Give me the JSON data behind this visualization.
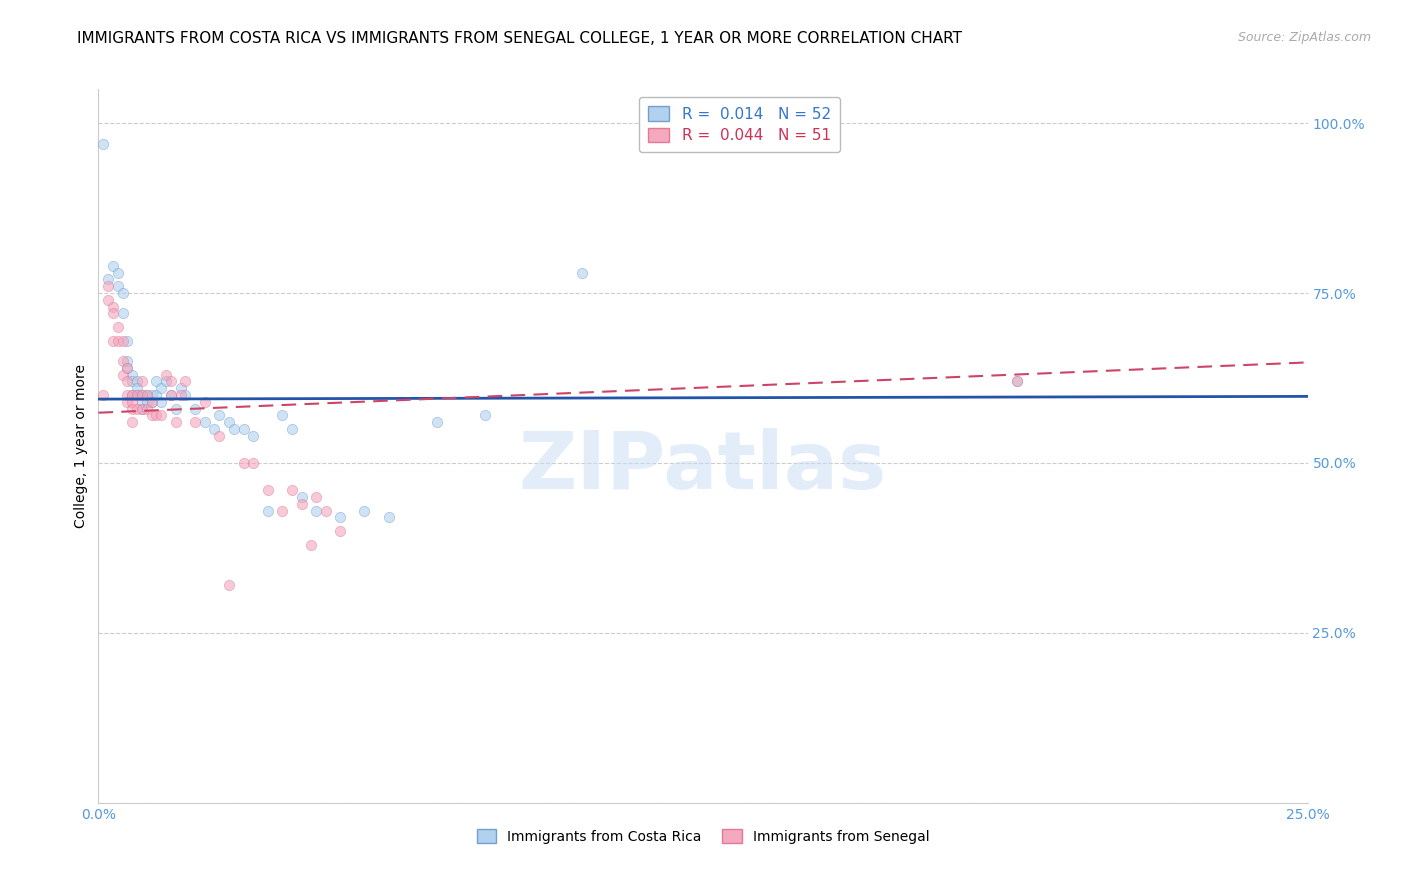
{
  "title": "IMMIGRANTS FROM COSTA RICA VS IMMIGRANTS FROM SENEGAL COLLEGE, 1 YEAR OR MORE CORRELATION CHART",
  "source": "Source: ZipAtlas.com",
  "ylabel": "College, 1 year or more",
  "xlim": [
    0.0,
    0.25
  ],
  "ylim": [
    0.0,
    1.05
  ],
  "x_ticks": [
    0.0,
    0.25
  ],
  "x_tick_labels": [
    "0.0%",
    "25.0%"
  ],
  "y_ticks": [
    0.0,
    0.25,
    0.5,
    0.75,
    1.0
  ],
  "y_tick_labels_right": [
    "",
    "25.0%",
    "50.0%",
    "75.0%",
    "100.0%"
  ],
  "background_color": "#ffffff",
  "watermark": "ZIPatlas",
  "grid_color": "#cccccc",
  "scatter_alpha": 0.55,
  "scatter_size": 55,
  "blue_color": "#aaccee",
  "blue_edge": "#6699cc",
  "pink_color": "#f4a0b8",
  "pink_edge": "#dd7090",
  "blue_line_color": "#2255aa",
  "pink_line_color": "#cc4466",
  "legend_label_blue": "R =  0.014   N = 52",
  "legend_label_pink": "R =  0.044   N = 51",
  "bottom_label_blue": "Immigrants from Costa Rica",
  "bottom_label_pink": "Immigrants from Senegal",
  "blue_scatter_x": [
    0.001,
    0.002,
    0.003,
    0.004,
    0.004,
    0.005,
    0.005,
    0.006,
    0.006,
    0.006,
    0.007,
    0.007,
    0.007,
    0.008,
    0.008,
    0.008,
    0.009,
    0.009,
    0.009,
    0.01,
    0.01,
    0.011,
    0.011,
    0.012,
    0.012,
    0.013,
    0.013,
    0.014,
    0.015,
    0.016,
    0.017,
    0.018,
    0.02,
    0.022,
    0.024,
    0.025,
    0.027,
    0.028,
    0.03,
    0.032,
    0.035,
    0.038,
    0.04,
    0.042,
    0.045,
    0.05,
    0.055,
    0.06,
    0.07,
    0.08,
    0.1,
    0.19
  ],
  "blue_scatter_y": [
    0.97,
    0.77,
    0.79,
    0.78,
    0.76,
    0.75,
    0.72,
    0.68,
    0.65,
    0.64,
    0.63,
    0.62,
    0.6,
    0.62,
    0.61,
    0.6,
    0.6,
    0.59,
    0.58,
    0.6,
    0.59,
    0.6,
    0.59,
    0.62,
    0.6,
    0.61,
    0.59,
    0.62,
    0.6,
    0.58,
    0.61,
    0.6,
    0.58,
    0.56,
    0.55,
    0.57,
    0.56,
    0.55,
    0.55,
    0.54,
    0.43,
    0.57,
    0.55,
    0.45,
    0.43,
    0.42,
    0.43,
    0.42,
    0.56,
    0.57,
    0.78,
    0.62
  ],
  "pink_scatter_x": [
    0.001,
    0.002,
    0.002,
    0.003,
    0.003,
    0.003,
    0.004,
    0.004,
    0.005,
    0.005,
    0.005,
    0.006,
    0.006,
    0.006,
    0.006,
    0.007,
    0.007,
    0.007,
    0.007,
    0.008,
    0.008,
    0.009,
    0.009,
    0.009,
    0.01,
    0.01,
    0.011,
    0.011,
    0.012,
    0.013,
    0.014,
    0.015,
    0.015,
    0.016,
    0.017,
    0.018,
    0.02,
    0.022,
    0.025,
    0.027,
    0.03,
    0.032,
    0.035,
    0.038,
    0.04,
    0.042,
    0.044,
    0.045,
    0.047,
    0.05,
    0.19
  ],
  "pink_scatter_y": [
    0.6,
    0.76,
    0.74,
    0.73,
    0.72,
    0.68,
    0.7,
    0.68,
    0.68,
    0.65,
    0.63,
    0.64,
    0.62,
    0.6,
    0.59,
    0.6,
    0.59,
    0.58,
    0.56,
    0.6,
    0.58,
    0.62,
    0.6,
    0.58,
    0.6,
    0.58,
    0.59,
    0.57,
    0.57,
    0.57,
    0.63,
    0.62,
    0.6,
    0.56,
    0.6,
    0.62,
    0.56,
    0.59,
    0.54,
    0.32,
    0.5,
    0.5,
    0.46,
    0.43,
    0.46,
    0.44,
    0.38,
    0.45,
    0.43,
    0.4,
    0.62
  ],
  "blue_line_x": [
    0.0,
    0.25
  ],
  "blue_line_y": [
    0.594,
    0.598
  ],
  "pink_line_x": [
    0.0,
    0.25
  ],
  "pink_line_y": [
    0.574,
    0.648
  ],
  "title_fontsize": 11,
  "axis_label_fontsize": 10,
  "tick_fontsize": 10,
  "source_fontsize": 9
}
